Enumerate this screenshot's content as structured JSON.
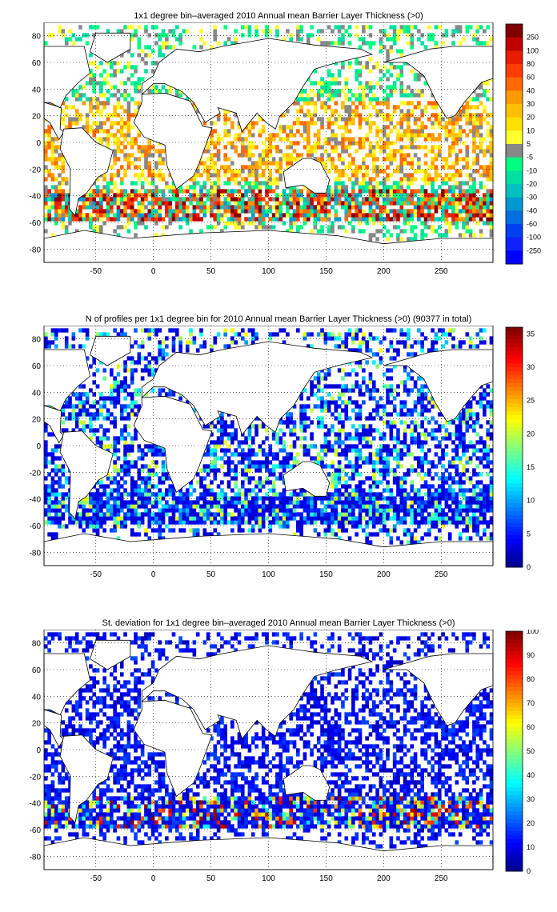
{
  "chart_data": [
    {
      "type": "heatmap",
      "title": "1x1 degree bin–averaged 2010 Annual mean Barrier Layer Thickness (>0)",
      "xlabel": "",
      "ylabel": "",
      "xlim": [
        -95,
        295
      ],
      "ylim": [
        -90,
        90
      ],
      "xticks": [
        "-50",
        "0",
        "50",
        "100",
        "150",
        "200",
        "250"
      ],
      "yticks": [
        "80",
        "60",
        "40",
        "20",
        "0",
        "-20",
        "-40",
        "-60",
        "-80"
      ],
      "grid": true,
      "colorbar": {
        "scale": "categorical",
        "labels": [
          "250",
          "100",
          "80",
          "60",
          "40",
          "30",
          "20",
          "10",
          "5",
          "-5",
          "-10",
          "-20",
          "-30",
          "-40",
          "-60",
          "-100",
          "-250"
        ],
        "colors": [
          "#800000",
          "#c00000",
          "#e81c00",
          "#ff3c00",
          "#ff6a00",
          "#ff9a00",
          "#ffc000",
          "#ffe000",
          "#ffff30",
          "#888888",
          "#00ff80",
          "#00e0a0",
          "#00c0c0",
          "#0098d0",
          "#0070e0",
          "#0040f0",
          "#1020ff",
          "#0000ff"
        ]
      }
    },
    {
      "type": "heatmap",
      "title": "N of profiles per 1x1 degree bin for 2010 Annual mean Barrier Layer Thickness (>0) (90377 in total)",
      "xlabel": "",
      "ylabel": "",
      "xlim": [
        -95,
        295
      ],
      "ylim": [
        -90,
        90
      ],
      "xticks": [
        "-50",
        "0",
        "50",
        "100",
        "150",
        "200",
        "250"
      ],
      "yticks": [
        "80",
        "60",
        "40",
        "20",
        "0",
        "-20",
        "-40",
        "-60",
        "-80"
      ],
      "grid": true,
      "colorbar": {
        "scale": "linear",
        "range": [
          0,
          36
        ],
        "ticks": [
          "35",
          "30",
          "25",
          "20",
          "15",
          "10",
          "5",
          "0"
        ]
      }
    },
    {
      "type": "heatmap",
      "title": "St. deviation for 1x1 degree bin–averaged 2010 Annual mean Barrier Layer Thickness (>0)",
      "xlabel": "",
      "ylabel": "",
      "xlim": [
        -95,
        295
      ],
      "ylim": [
        -90,
        90
      ],
      "xticks": [
        "-50",
        "0",
        "50",
        "100",
        "150",
        "200",
        "250"
      ],
      "yticks": [
        "80",
        "60",
        "40",
        "20",
        "0",
        "-20",
        "-40",
        "-60",
        "-80"
      ],
      "grid": true,
      "colorbar": {
        "scale": "linear",
        "range": [
          0,
          100
        ],
        "ticks": [
          "100",
          "90",
          "80",
          "70",
          "60",
          "50",
          "40",
          "30",
          "20",
          "10",
          "0"
        ]
      }
    }
  ]
}
